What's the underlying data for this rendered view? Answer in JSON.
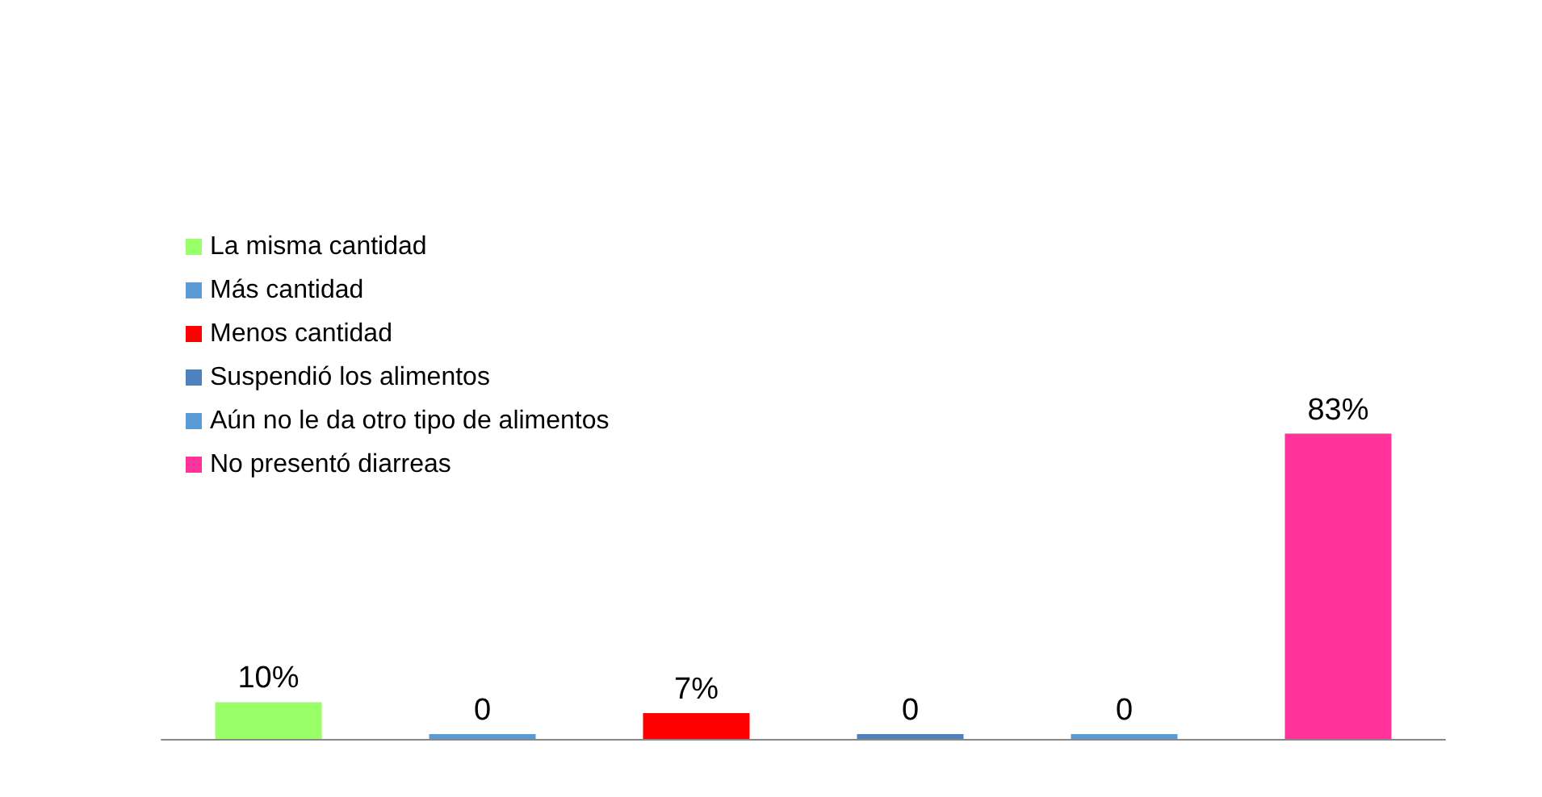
{
  "chart_data": {
    "type": "bar",
    "categories": [
      null,
      null,
      null,
      null,
      null,
      null
    ],
    "stacked": true,
    "legend": "top left",
    "series": [
      {
        "name": "La misma cantidad",
        "color": "#99ff66",
        "values": [
          10,
          null,
          null,
          null,
          null,
          null
        ],
        "value_labels": [
          "10%",
          null,
          null,
          null,
          null,
          null
        ]
      },
      {
        "name": "Más cantidad",
        "color": "#5b9bd5",
        "values": [
          null,
          0,
          null,
          null,
          null,
          null
        ],
        "value_labels": [
          null,
          "0",
          null,
          null,
          null,
          null
        ]
      },
      {
        "name": "Menos cantidad",
        "color": "#ff0000",
        "values": [
          null,
          null,
          7,
          null,
          null,
          null
        ],
        "value_labels": [
          null,
          null,
          "7%",
          null,
          null,
          null
        ]
      },
      {
        "name": "Suspendió los alimentos",
        "color": "#4f81bd",
        "values": [
          null,
          null,
          null,
          0,
          null,
          null
        ],
        "value_labels": [
          null,
          null,
          null,
          "0",
          null,
          null
        ]
      },
      {
        "name": "Aún no le da otro tipo de alimentos",
        "color": "#5b9bd5",
        "values": [
          null,
          null,
          null,
          null,
          0,
          null
        ],
        "value_labels": [
          null,
          null,
          null,
          null,
          "0",
          null
        ]
      },
      {
        "name": "No presentó diarreas",
        "color": "#ff3399",
        "values": [
          null,
          null,
          null,
          null,
          null,
          83
        ],
        "value_labels": [
          null,
          null,
          null,
          null,
          null,
          "83%"
        ]
      }
    ]
  }
}
